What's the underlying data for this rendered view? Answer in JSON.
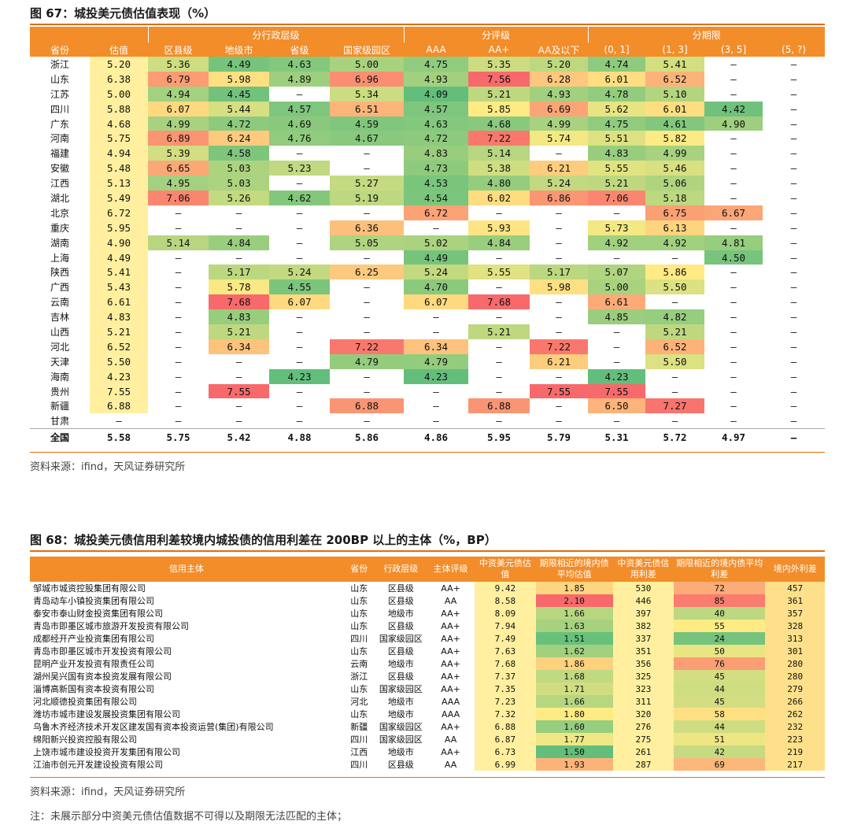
{
  "fig67": {
    "title": "图 67：城投美元债估值表现（%）",
    "group_headers": {
      "admin": "分行政层级",
      "rating": "分评级",
      "term": "分期限"
    },
    "columns": [
      "省份",
      "估值",
      "区县级",
      "地级市",
      "省级",
      "国家级园区",
      "AAA",
      "AA+",
      "AA及以下",
      "(0, 1]",
      "(1, 3]",
      "(3, 5]",
      "(5, ?)"
    ],
    "rows": [
      {
        "p": "浙江",
        "v": [
          "5.20",
          "5.36",
          "4.49",
          "4.63",
          "5.00",
          "4.75",
          "5.35",
          "5.20",
          "4.74",
          "5.41",
          "-",
          "-"
        ]
      },
      {
        "p": "山东",
        "v": [
          "6.38",
          "6.79",
          "5.98",
          "4.89",
          "6.96",
          "4.93",
          "7.56",
          "6.28",
          "6.01",
          "6.52",
          "-",
          "-"
        ]
      },
      {
        "p": "江苏",
        "v": [
          "5.00",
          "4.94",
          "4.45",
          "-",
          "5.34",
          "4.09",
          "5.21",
          "4.93",
          "4.78",
          "5.10",
          "-",
          "-"
        ]
      },
      {
        "p": "四川",
        "v": [
          "5.88",
          "6.07",
          "5.44",
          "4.57",
          "6.51",
          "4.57",
          "5.85",
          "6.69",
          "5.62",
          "6.01",
          "4.42",
          "-"
        ]
      },
      {
        "p": "广东",
        "v": [
          "4.68",
          "4.99",
          "4.72",
          "4.69",
          "4.59",
          "4.63",
          "4.68",
          "4.99",
          "4.75",
          "4.61",
          "4.90",
          "-"
        ]
      },
      {
        "p": "河南",
        "v": [
          "5.75",
          "6.89",
          "6.24",
          "4.76",
          "4.67",
          "4.72",
          "7.22",
          "5.74",
          "5.51",
          "5.82",
          "-",
          "-"
        ]
      },
      {
        "p": "福建",
        "v": [
          "4.94",
          "5.39",
          "4.58",
          "-",
          "-",
          "4.83",
          "5.14",
          "-",
          "4.83",
          "4.99",
          "-",
          "-"
        ]
      },
      {
        "p": "安徽",
        "v": [
          "5.48",
          "6.65",
          "5.03",
          "5.23",
          "-",
          "4.73",
          "5.38",
          "6.21",
          "5.55",
          "5.46",
          "-",
          "-"
        ]
      },
      {
        "p": "江西",
        "v": [
          "5.13",
          "4.95",
          "5.03",
          "-",
          "5.27",
          "4.53",
          "4.80",
          "5.24",
          "5.21",
          "5.06",
          "-",
          "-"
        ]
      },
      {
        "p": "湖北",
        "v": [
          "5.49",
          "7.06",
          "5.26",
          "4.62",
          "5.19",
          "4.54",
          "6.02",
          "6.86",
          "7.06",
          "5.18",
          "-",
          "-"
        ]
      },
      {
        "p": "北京",
        "v": [
          "6.72",
          "-",
          "-",
          "-",
          "-",
          "6.72",
          "-",
          "-",
          "-",
          "6.75",
          "6.67",
          "-"
        ]
      },
      {
        "p": "重庆",
        "v": [
          "5.95",
          "-",
          "-",
          "-",
          "6.36",
          "-",
          "5.93",
          "-",
          "5.73",
          "6.13",
          "-",
          "-"
        ]
      },
      {
        "p": "湖南",
        "v": [
          "4.90",
          "5.14",
          "4.84",
          "-",
          "5.05",
          "5.02",
          "4.84",
          "-",
          "4.92",
          "4.92",
          "4.81",
          "-"
        ]
      },
      {
        "p": "上海",
        "v": [
          "4.49",
          "-",
          "-",
          "-",
          "-",
          "4.49",
          "-",
          "-",
          "-",
          "-",
          "4.50",
          "-"
        ]
      },
      {
        "p": "陕西",
        "v": [
          "5.41",
          "-",
          "5.17",
          "5.24",
          "6.25",
          "5.24",
          "5.55",
          "5.17",
          "5.07",
          "5.86",
          "-",
          "-"
        ]
      },
      {
        "p": "广西",
        "v": [
          "5.43",
          "-",
          "5.78",
          "4.55",
          "-",
          "4.70",
          "-",
          "5.98",
          "5.00",
          "5.50",
          "-",
          "-"
        ]
      },
      {
        "p": "云南",
        "v": [
          "6.61",
          "-",
          "7.68",
          "6.07",
          "-",
          "6.07",
          "7.68",
          "-",
          "6.61",
          "-",
          "-",
          "-"
        ]
      },
      {
        "p": "吉林",
        "v": [
          "4.83",
          "-",
          "4.83",
          "-",
          "-",
          "-",
          "-",
          "-",
          "4.85",
          "4.82",
          "-",
          "-"
        ]
      },
      {
        "p": "山西",
        "v": [
          "5.21",
          "-",
          "5.21",
          "-",
          "-",
          "-",
          "5.21",
          "-",
          "-",
          "5.21",
          "-",
          "-"
        ]
      },
      {
        "p": "河北",
        "v": [
          "6.52",
          "-",
          "6.34",
          "-",
          "7.22",
          "6.34",
          "-",
          "7.22",
          "-",
          "6.52",
          "-",
          "-"
        ]
      },
      {
        "p": "天津",
        "v": [
          "5.50",
          "-",
          "-",
          "-",
          "4.79",
          "4.79",
          "-",
          "6.21",
          "-",
          "5.50",
          "-",
          "-"
        ]
      },
      {
        "p": "海南",
        "v": [
          "4.23",
          "-",
          "-",
          "4.23",
          "-",
          "4.23",
          "-",
          "-",
          "4.23",
          "-",
          "-",
          "-"
        ]
      },
      {
        "p": "贵州",
        "v": [
          "7.55",
          "-",
          "7.55",
          "-",
          "-",
          "-",
          "-",
          "7.55",
          "7.55",
          "-",
          "-",
          "-"
        ]
      },
      {
        "p": "新疆",
        "v": [
          "6.88",
          "-",
          "-",
          "-",
          "6.88",
          "-",
          "6.88",
          "-",
          "6.50",
          "7.27",
          "-",
          "-"
        ]
      },
      {
        "p": "甘肃",
        "v": [
          "-",
          "-",
          "-",
          "-",
          "-",
          "-",
          "-",
          "-",
          "-",
          "-",
          "-",
          "-"
        ]
      }
    ],
    "national": {
      "p": "全国",
      "v": [
        "5.58",
        "5.75",
        "5.42",
        "4.88",
        "5.86",
        "4.86",
        "5.95",
        "5.79",
        "5.31",
        "5.72",
        "4.97",
        "-"
      ]
    },
    "source": "资料来源：ifind，天风证券研究所"
  },
  "fig68": {
    "title": "图 68：城投美元债信用利差较境内城投债的信用利差在 200BP 以上的主体（%，BP）",
    "columns": [
      "信用主体",
      "省份",
      "行政层级",
      "主体评级",
      "中资美元债估值",
      "期限相近的境内债平均估值",
      "中资美元债信用利差",
      "期限相近的境内债平均利差",
      "境内外利差"
    ],
    "rows": [
      [
        "邹城市城资控股集团有限公司",
        "山东",
        "区县级",
        "AA+",
        "9.42",
        "1.85",
        "530",
        "72",
        "457"
      ],
      [
        "青岛动车小镇投资集团有限公司",
        "山东",
        "区县级",
        "AA",
        "8.58",
        "2.10",
        "446",
        "85",
        "361"
      ],
      [
        "泰安市泰山财金投资集团有限公司",
        "山东",
        "地级市",
        "AA+",
        "8.09",
        "1.66",
        "397",
        "40",
        "357"
      ],
      [
        "青岛市即墨区城市旅游开发投资有限公司",
        "山东",
        "区县级",
        "AA+",
        "7.94",
        "1.63",
        "382",
        "55",
        "328"
      ],
      [
        "成都经开产业投资集团有限公司",
        "四川",
        "国家级园区",
        "AA+",
        "7.49",
        "1.51",
        "337",
        "24",
        "313"
      ],
      [
        "青岛市即墨区城市开发投资有限公司",
        "山东",
        "区县级",
        "AA+",
        "7.63",
        "1.62",
        "351",
        "50",
        "301"
      ],
      [
        "昆明产业开发投资有限责任公司",
        "云南",
        "地级市",
        "AA+",
        "7.68",
        "1.86",
        "356",
        "76",
        "280"
      ],
      [
        "湖州吴兴国有资本投资发展有限公司",
        "浙江",
        "区县级",
        "AA+",
        "7.37",
        "1.68",
        "325",
        "45",
        "280"
      ],
      [
        "淄博高新国有资本投资有限公司",
        "山东",
        "国家级园区",
        "AA+",
        "7.35",
        "1.71",
        "323",
        "44",
        "279"
      ],
      [
        "河北顺德投资集团有限公司",
        "河北",
        "地级市",
        "AAA",
        "7.23",
        "1.66",
        "311",
        "45",
        "266"
      ],
      [
        "潍坊市城市建设发展投资集团有限公司",
        "山东",
        "地级市",
        "AAA",
        "7.32",
        "1.80",
        "320",
        "58",
        "262"
      ],
      [
        "乌鲁木齐经济技术开发区建发国有资本投资运营(集团)有限公司",
        "新疆",
        "国家级园区",
        "AA+",
        "6.88",
        "1.60",
        "276",
        "44",
        "232"
      ],
      [
        "绵阳新兴投资控股有限公司",
        "四川",
        "国家级园区",
        "AA",
        "6.87",
        "1.77",
        "275",
        "51",
        "223"
      ],
      [
        "上饶市城市建设投资开发集团有限公司",
        "江西",
        "地级市",
        "AA+",
        "6.73",
        "1.50",
        "261",
        "42",
        "219"
      ],
      [
        "江油市创元开发建设投资有限公司",
        "四川",
        "区县级",
        "AA",
        "6.99",
        "1.93",
        "287",
        "69",
        "217"
      ]
    ],
    "source": "资料来源：ifind，天风证券研究所",
    "note": "注：未展示部分中资美元债估值数据不可得以及期限无法匹配的主体；"
  }
}
